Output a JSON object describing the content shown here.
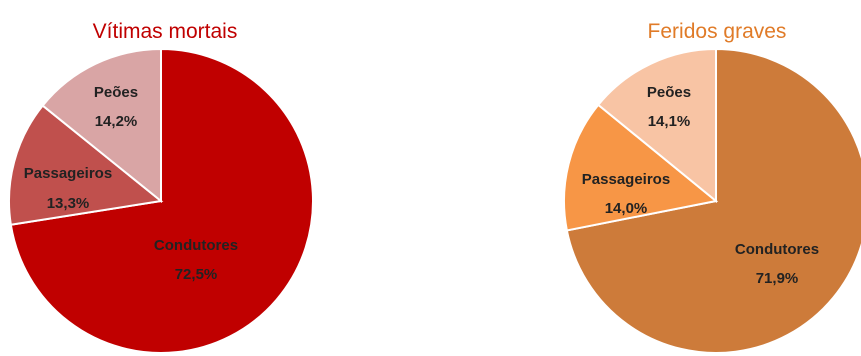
{
  "chart_data": [
    {
      "type": "pie",
      "title": "Vítimas mortais",
      "title_color": "#c00000",
      "slices": [
        {
          "label": "Condutores",
          "value": 72.5,
          "value_text": "72,5%",
          "color": "#c00000"
        },
        {
          "label": "Passageiros",
          "value": 13.3,
          "value_text": "13,3%",
          "color": "#c0504d"
        },
        {
          "label": "Peões",
          "value": 14.2,
          "value_text": "14,2%",
          "color": "#d9a5a5"
        }
      ]
    },
    {
      "type": "pie",
      "title": "Feridos graves",
      "title_color": "#e07b28",
      "slices": [
        {
          "label": "Condutores",
          "value": 71.9,
          "value_text": "71,9%",
          "color": "#cd7b3a"
        },
        {
          "label": "Passageiros",
          "value": 14.0,
          "value_text": "14,0%",
          "color": "#f79646"
        },
        {
          "label": "Peões",
          "value": 14.1,
          "value_text": "14,1%",
          "color": "#f8c4a4"
        }
      ]
    }
  ]
}
